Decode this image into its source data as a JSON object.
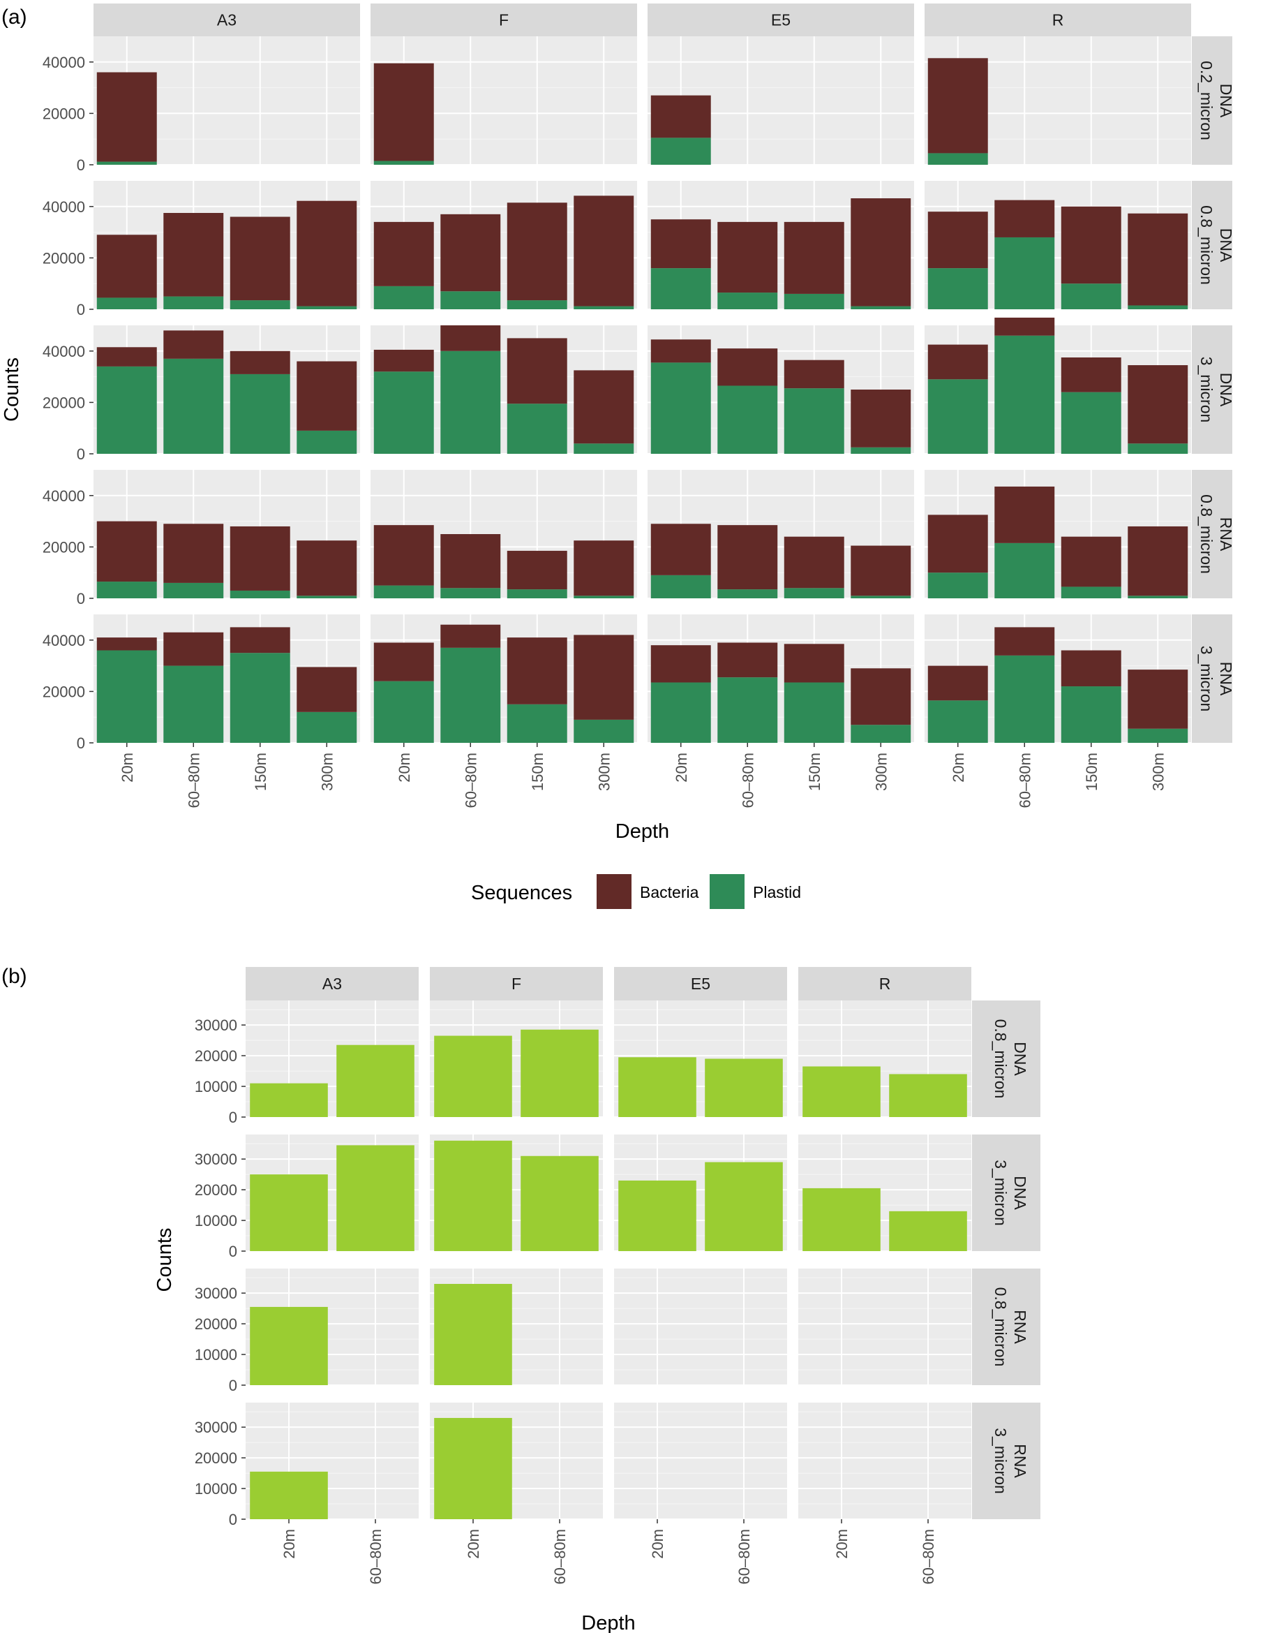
{
  "chart_data": [
    {
      "panel_label": "(a)",
      "type": "bar",
      "stacked": true,
      "facet_columns": [
        "A3",
        "F",
        "E5",
        "R"
      ],
      "facet_rows": [
        {
          "strip": "DNA",
          "sub": "0.2_micron"
        },
        {
          "strip": "DNA",
          "sub": "0.8_micron"
        },
        {
          "strip": "DNA",
          "sub": "3_micron"
        },
        {
          "strip": "RNA",
          "sub": "0.8_micron"
        },
        {
          "strip": "RNA",
          "sub": "3_micron"
        }
      ],
      "categories": [
        "20m",
        "60–80m",
        "150m",
        "300m"
      ],
      "xlabel": "Depth",
      "ylabel": "Counts",
      "ylim": [
        0,
        50000
      ],
      "yticks": [
        0,
        20000,
        40000
      ],
      "grid": true,
      "legend": {
        "title": "Sequences",
        "position": "bottom",
        "entries": [
          {
            "name": "Bacteria",
            "color": "#622a27"
          },
          {
            "name": "Plastid",
            "color": "#2e8b57"
          }
        ]
      },
      "series": [
        {
          "name": "Plastid",
          "stack_order": 0,
          "color": "#2e8b57",
          "values": [
            [
              [
                1200,
                null,
                null,
                null
              ],
              [
                1500,
                null,
                null,
                null
              ],
              [
                10500,
                null,
                null,
                null
              ],
              [
                4500,
                null,
                null,
                null
              ]
            ],
            [
              [
                4500,
                5000,
                3500,
                1200
              ],
              [
                9000,
                7000,
                3500,
                1200
              ],
              [
                16000,
                6500,
                6000,
                1200
              ],
              [
                16000,
                28000,
                10000,
                1500
              ]
            ],
            [
              [
                34000,
                37000,
                31000,
                9000
              ],
              [
                32000,
                40000,
                19500,
                4000
              ],
              [
                35500,
                26500,
                25500,
                2500
              ],
              [
                29000,
                46000,
                24000,
                4000
              ]
            ],
            [
              [
                6500,
                6000,
                3000,
                1000
              ],
              [
                5000,
                4000,
                3500,
                1000
              ],
              [
                9000,
                3500,
                4000,
                1000
              ],
              [
                10000,
                21500,
                4500,
                1000
              ]
            ],
            [
              [
                36000,
                30000,
                35000,
                12000
              ],
              [
                24000,
                37000,
                15000,
                9000
              ],
              [
                23500,
                25500,
                23500,
                7000
              ],
              [
                16500,
                34000,
                22000,
                5500
              ]
            ]
          ]
        },
        {
          "name": "Bacteria",
          "stack_order": 1,
          "color": "#622a27",
          "values": [
            [
              [
                34800,
                null,
                null,
                null
              ],
              [
                38000,
                null,
                null,
                null
              ],
              [
                16500,
                null,
                null,
                null
              ],
              [
                37000,
                null,
                null,
                null
              ]
            ],
            [
              [
                24500,
                32500,
                32500,
                41000
              ],
              [
                25000,
                30000,
                38000,
                43000
              ],
              [
                19000,
                27500,
                28000,
                42000
              ],
              [
                22000,
                14500,
                30000,
                35800
              ]
            ],
            [
              [
                7500,
                11000,
                9000,
                27000
              ],
              [
                8500,
                10000,
                25500,
                28500
              ],
              [
                9000,
                14500,
                11000,
                22500
              ],
              [
                13500,
                7000,
                13500,
                30500
              ]
            ],
            [
              [
                23500,
                23000,
                25000,
                21500
              ],
              [
                23500,
                21000,
                15000,
                21500
              ],
              [
                20000,
                25000,
                20000,
                19500
              ],
              [
                22500,
                22000,
                19500,
                27000
              ]
            ],
            [
              [
                5000,
                13000,
                10000,
                17500
              ],
              [
                15000,
                9000,
                26000,
                33000
              ],
              [
                14500,
                13500,
                15000,
                22000
              ],
              [
                13500,
                11000,
                14000,
                23000
              ]
            ]
          ]
        }
      ]
    },
    {
      "panel_label": "(b)",
      "type": "bar",
      "stacked": false,
      "facet_columns": [
        "A3",
        "F",
        "E5",
        "R"
      ],
      "facet_rows": [
        {
          "strip": "DNA",
          "sub": "0.8_micron"
        },
        {
          "strip": "DNA",
          "sub": "3_micron"
        },
        {
          "strip": "RNA",
          "sub": "0.8_micron"
        },
        {
          "strip": "RNA",
          "sub": "3_micron"
        }
      ],
      "categories": [
        "20m",
        "60–80m"
      ],
      "xlabel": "Depth",
      "ylabel": "Counts",
      "ylim": [
        0,
        38000
      ],
      "yticks": [
        0,
        10000,
        20000,
        30000
      ],
      "grid": true,
      "bar_color": "#9acd32",
      "values": [
        [
          [
            11000,
            23500
          ],
          [
            26500,
            28500
          ],
          [
            19500,
            19000
          ],
          [
            16500,
            14000
          ]
        ],
        [
          [
            25000,
            34500
          ],
          [
            36000,
            31000
          ],
          [
            23000,
            29000
          ],
          [
            20500,
            13000
          ]
        ],
        [
          [
            25500,
            null
          ],
          [
            33000,
            null
          ],
          [
            null,
            null
          ],
          [
            null,
            null
          ]
        ],
        [
          [
            15500,
            null
          ],
          [
            33000,
            null
          ],
          [
            null,
            null
          ],
          [
            null,
            null
          ]
        ]
      ]
    }
  ]
}
